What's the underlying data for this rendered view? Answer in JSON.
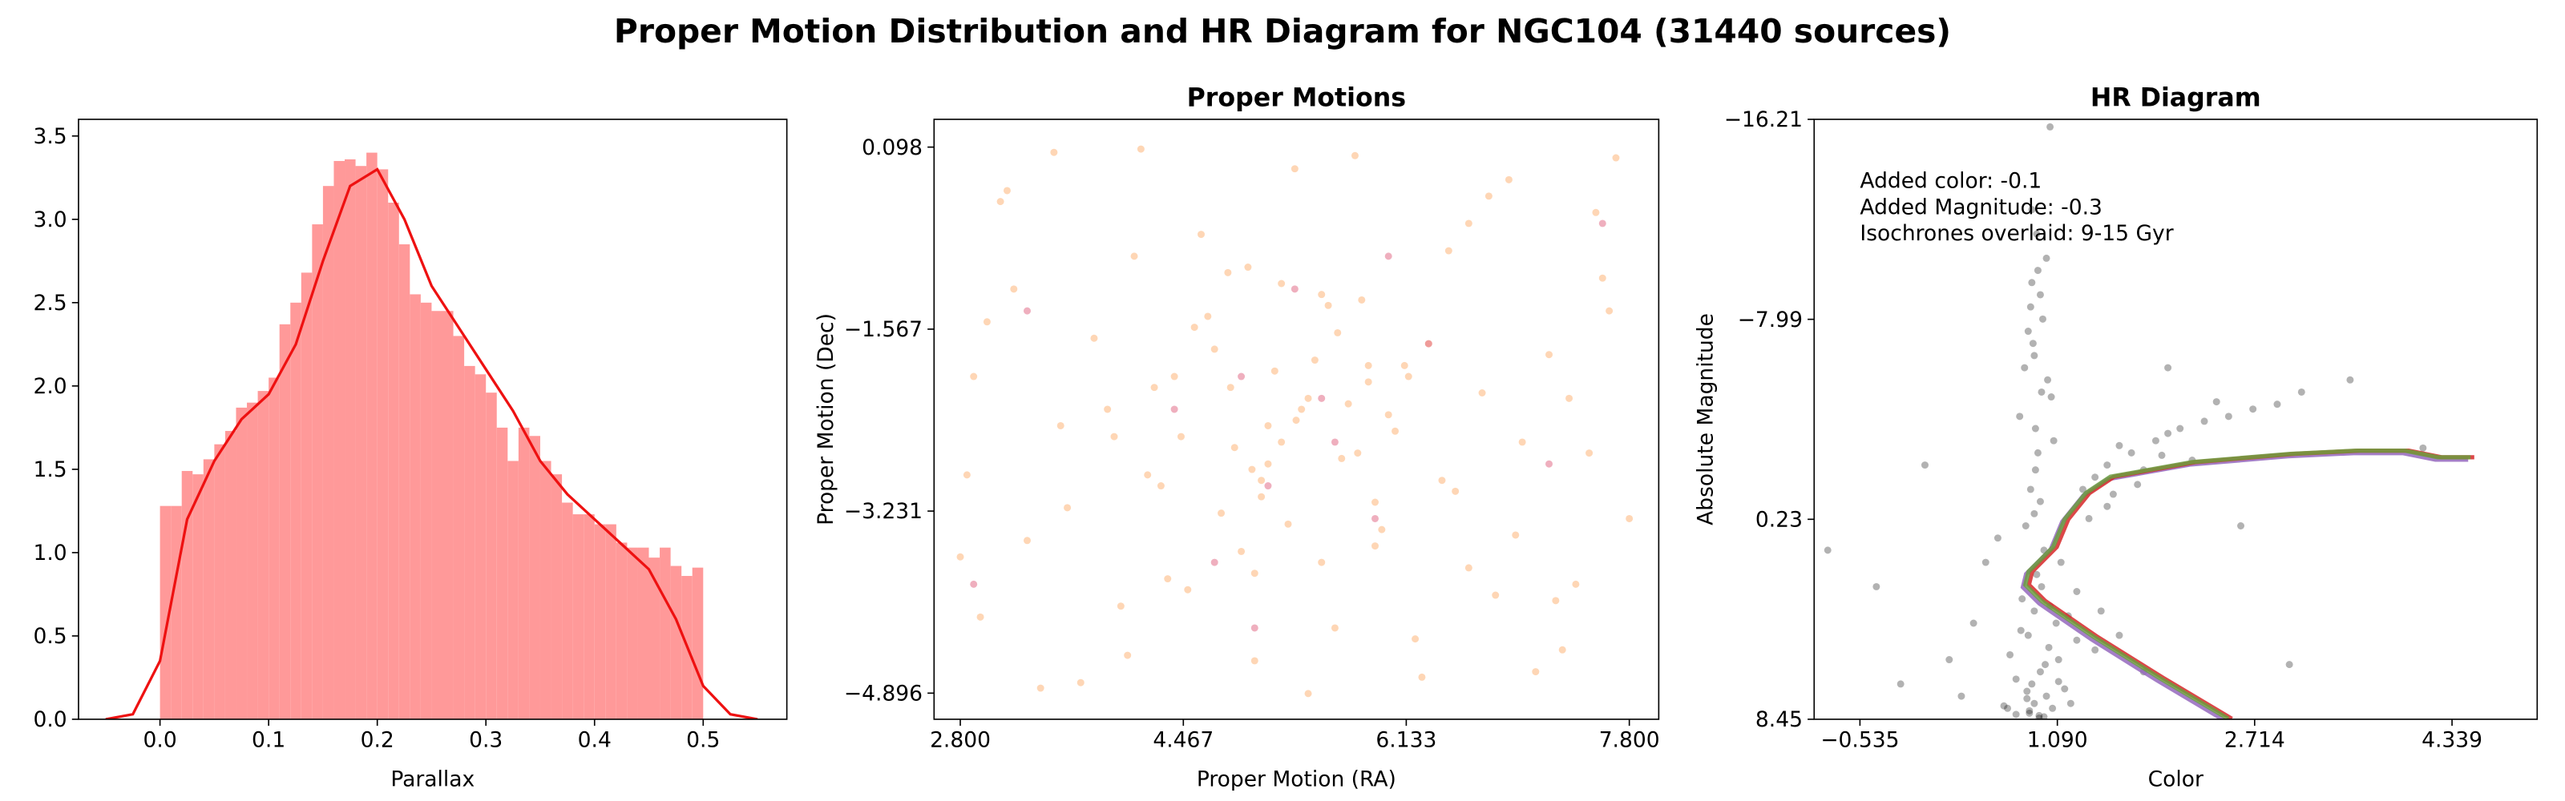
{
  "title": "Proper Motion Distribution and HR Diagram for NGC104 (31440 sources)",
  "chart_data": [
    {
      "type": "histogram",
      "xlabel": "Parallax",
      "color": "#ff9999",
      "bins": [
        0,
        0.01,
        0.02,
        0.03,
        0.04,
        0.05,
        0.06,
        0.07,
        0.08,
        0.09,
        0.1,
        0.11,
        0.12,
        0.13,
        0.14,
        0.15,
        0.16,
        0.17,
        0.18,
        0.19,
        0.2,
        0.21,
        0.22,
        0.23,
        0.24,
        0.25,
        0.26,
        0.27,
        0.28,
        0.29,
        0.3,
        0.31,
        0.32,
        0.33,
        0.34,
        0.35,
        0.36,
        0.37,
        0.38,
        0.39,
        0.4,
        0.41,
        0.42,
        0.43,
        0.44,
        0.45,
        0.46,
        0.47,
        0.48,
        0.49,
        0.5
      ],
      "counts": [
        1.28,
        1.28,
        1.49,
        1.47,
        1.56,
        1.65,
        1.73,
        1.87,
        1.9,
        1.97,
        2.05,
        2.37,
        2.5,
        2.68,
        2.97,
        3.2,
        3.35,
        3.36,
        3.32,
        3.4,
        3.3,
        3.1,
        2.85,
        2.55,
        2.5,
        2.45,
        2.45,
        2.3,
        2.12,
        2.07,
        1.96,
        1.75,
        1.55,
        1.75,
        1.7,
        1.55,
        1.47,
        1.3,
        1.23,
        1.23,
        1.17,
        1.17,
        1.06,
        1.03,
        1.03,
        0.97,
        1.03,
        0.92,
        0.86,
        0.91
      ],
      "kde": {
        "color": "#ee1111",
        "x": [
          -0.05,
          -0.025,
          0,
          0.025,
          0.05,
          0.075,
          0.1,
          0.125,
          0.15,
          0.175,
          0.2,
          0.225,
          0.25,
          0.275,
          0.3,
          0.325,
          0.35,
          0.375,
          0.4,
          0.425,
          0.45,
          0.475,
          0.5,
          0.525,
          0.55
        ],
        "values": [
          0,
          0.03,
          0.35,
          1.2,
          1.55,
          1.8,
          1.95,
          2.25,
          2.75,
          3.2,
          3.3,
          3.0,
          2.6,
          2.35,
          2.1,
          1.85,
          1.55,
          1.35,
          1.2,
          1.05,
          0.9,
          0.6,
          0.2,
          0.03,
          0
        ]
      },
      "xlim": [
        -0.075,
        0.577
      ],
      "ylim": [
        0,
        3.6
      ],
      "xticks": [
        {
          "value": 0,
          "label": "0.0"
        },
        0.1,
        0.2,
        0.3,
        0.4,
        0.5
      ],
      "yticks": [
        {
          "value": 0,
          "label": "0.0"
        },
        0.5,
        {
          "value": 1,
          "label": "1.0"
        },
        1.5,
        {
          "value": 2,
          "label": "2.0"
        },
        2.5,
        {
          "value": 3,
          "label": "3.0"
        },
        3.5
      ]
    },
    {
      "type": "scatter",
      "title": "Proper Motions",
      "xlabel": "Proper Motion (RA)",
      "ylabel": "Proper Motion (Dec)",
      "alpha": 0.5,
      "series": [
        {
          "color": "#fdae6b",
          "x": [
            5.31,
            4.82,
            5.77,
            6.12,
            4.45,
            5.05,
            5.62,
            4.98,
            5.4,
            6.4,
            3.9,
            4.7,
            5.95,
            5.2,
            4.3,
            6.7,
            5.55,
            4.9,
            5.1,
            5.85,
            3.1,
            7.6,
            2.95,
            7.4,
            3.5,
            7.1,
            4.1,
            6.9,
            3.3,
            7.7,
            2.9,
            7.3,
            3.7,
            6.6,
            4.0,
            7.5,
            3.2,
            6.2,
            4.6,
            5.0,
            5.35,
            5.45,
            4.75,
            5.65,
            6.05,
            4.55,
            5.25,
            5.15,
            4.85,
            5.9,
            6.3,
            4.2,
            5.7,
            5.5,
            4.65,
            6.5,
            4.4,
            5.8,
            5.0,
            6.0,
            3.0,
            7.8,
            3.6,
            7.2,
            2.85,
            6.8,
            4.15,
            7.0,
            3.4,
            7.55,
            5.3,
            5.6,
            4.95,
            6.25,
            4.35,
            5.75,
            6.45,
            4.05,
            5.2,
            5.4,
            3.8,
            7.35,
            3.15,
            6.95,
            2.8,
            7.65,
            4.5,
            6.75,
            3.55,
            7.25,
            5.1,
            4.8,
            5.9,
            6.15,
            4.25,
            5.5,
            6.6,
            3.95,
            5.05,
            5.85
          ],
          "values": [
            -2.4,
            -2.1,
            -2.7,
            -1.9,
            -2.55,
            -3.1,
            -1.6,
            -2.85,
            -2.2,
            -2.95,
            -2.3,
            -1.75,
            -3.4,
            -2.6,
            -3.0,
            -2.15,
            -1.35,
            -3.6,
            -2.45,
            -2.05,
            -0.4,
            -1.1,
            -4.2,
            -3.9,
            0.05,
            -4.7,
            -0.9,
            -0.2,
            -3.5,
            0.0,
            -2.0,
            -4.5,
            -4.8,
            -0.6,
            -4.1,
            -2.7,
            -1.2,
            -4.4,
            -0.7,
            -4.6,
            -2.3,
            -1.85,
            -3.25,
            -2.75,
            -2.5,
            -1.55,
            -3.35,
            -1.95,
            -2.65,
            -3.15,
            -1.7,
            -2.9,
            -2.25,
            -3.7,
            -1.45,
            -3.05,
            -2.0,
            -1.3,
            -3.8,
            -2.35,
            -1.5,
            -3.3,
            -3.2,
            -1.8,
            -2.9,
            -4.0,
            0.08,
            -2.6,
            -4.85,
            -0.5,
            -0.1,
            -4.3,
            -1.0,
            -4.75,
            -3.85,
            0.02,
            -0.85,
            -4.55,
            -1.15,
            -4.9,
            -1.65,
            -2.2,
            -0.3,
            -3.45,
            -3.65,
            -1.4,
            -3.95,
            -0.35,
            -2.45,
            -4.05,
            -2.8,
            -1.05,
            -3.55,
            -2.0,
            -2.1,
            -1.25,
            -3.75,
            -2.55,
            -2.95,
            -1.9
          ]
        },
        {
          "color": "#e0607e",
          "x": [
            4.9,
            5.6,
            5.1,
            6.3,
            4.4,
            5.9,
            3.3,
            7.2,
            5.3,
            4.7,
            6.0,
            5.5,
            2.9,
            7.6,
            5.0
          ],
          "values": [
            -2.0,
            -2.6,
            -3.0,
            -1.7,
            -2.3,
            -3.3,
            -1.4,
            -2.8,
            -1.2,
            -3.7,
            -0.9,
            -2.2,
            -3.9,
            -0.6,
            -4.3
          ]
        }
      ],
      "xlim": [
        2.604,
        8.02
      ],
      "ylim": [
        -5.135,
        0.352
      ],
      "xticks": [
        {
          "value": 2.8,
          "label": "2.800"
        },
        4.467,
        6.133,
        {
          "value": 7.8,
          "label": "7.800"
        }
      ],
      "yticks": [
        0.098,
        {
          "value": -1.567,
          "label": "−1.567"
        },
        {
          "value": -3.231,
          "label": "−3.231"
        },
        {
          "value": -4.896,
          "label": "−4.896"
        }
      ]
    },
    {
      "type": "scatter",
      "title": "HR Diagram",
      "xlabel": "Color",
      "ylabel": "Absolute Magnitude",
      "alpha": 0.3,
      "annotation": [
        "Added color: -0.1",
        "Added Magnitude: -0.3",
        "Isochrones overlaid: 9-15 Gyr"
      ],
      "series": [
        {
          "color": "#000000",
          "x": [
            0.85,
            0.95,
            1.0,
            0.9,
            1.05,
            0.8,
            1.1,
            0.88,
            0.92,
            1.02,
            0.75,
            0.98,
            1.15,
            0.7,
            1.08,
            0.83,
            0.96,
            1.2,
            0.65,
            1.12,
            0.87,
            0.93,
            0.78,
            1.01,
            0.89,
            1.06,
            0.82,
            0.97,
            0.91,
            1.04,
            0.86,
            0.94,
            0.99,
            0.84,
            1.03,
            0.79,
            0.9,
            0.95,
            0.88,
            1.0,
            1.3,
            1.5,
            1.7,
            1.9,
            2.1,
            2.3,
            2.5,
            2.7,
            2.9,
            3.1,
            1.4,
            1.6,
            1.8,
            2.0,
            2.2,
            2.4,
            1.35,
            1.55,
            1.75,
            1.95,
            0.4,
            0.2,
            1.6,
            1.8,
            0.5,
            1.45,
            0.3,
            1.25,
            0.6,
            1.4,
            0.92,
            0.88,
            0.95,
            0.85,
            0.9,
            0.93,
            0.87,
            0.96,
            0.91,
            1.03,
            -0.4,
            -0.8,
            3.5,
            4.1,
            2.6,
            0.0,
            -0.2,
            2.0,
            3.0,
            1.5,
            0.94,
            0.86,
            0.9,
            0.98,
            0.84,
            1.1,
            0.75,
            1.25,
            0.68,
            1.18
          ],
          "values": [
            5.0,
            6.5,
            7.5,
            4.0,
            8.0,
            3.5,
            6.0,
            7.0,
            2.5,
            5.5,
            6.8,
            1.5,
            7.2,
            5.8,
            4.5,
            0.5,
            3.0,
            7.8,
            7.9,
            2.0,
            -1.0,
            -2.5,
            -4.0,
            -5.5,
            -7.0,
            -3.0,
            -6.0,
            -8.0,
            -1.8,
            -4.8,
            8.2,
            8.3,
            6.2,
            7.6,
            3.8,
            4.8,
            0.0,
            -0.5,
            -9.5,
            -10.5,
            -1.0,
            -2.0,
            -2.5,
            -3.0,
            -3.5,
            -3.8,
            -4.0,
            -4.3,
            -4.5,
            -5.0,
            -1.5,
            -2.8,
            -1.8,
            -3.3,
            -2.2,
            -4.6,
            0.2,
            -0.8,
            -1.2,
            -2.4,
            4.5,
            6.0,
            5.0,
            6.5,
            2.0,
            4.0,
            7.5,
            3.2,
            1.0,
            5.6,
            -11.5,
            -12.5,
            -9.0,
            -7.5,
            -6.5,
            -10.0,
            -8.5,
            -5.0,
            -3.5,
            -15.9,
            3.0,
            1.5,
            -5.5,
            -2.7,
            0.5,
            -2.0,
            7.0,
            -6.0,
            6.2,
            -0.3,
            8.4,
            8.1,
            7.8,
            8.35,
            7.3,
            6.9,
            8.25,
            5.2,
            8.0,
            4.2
          ]
        }
      ],
      "lines": [
        {
          "color": "#9467bd",
          "x": [
            2.477,
            1.911,
            1.372,
            0.941,
            0.806,
            0.833,
            1.035,
            1.13,
            1.305,
            1.507,
            2.181,
            2.989,
            3.529,
            3.933,
            4.202,
            4.472
          ],
          "values": [
            8.53,
            6.85,
            5.17,
            3.69,
            3.02,
            2.48,
            1.47,
            0.33,
            -0.75,
            -1.42,
            -2.02,
            -2.36,
            -2.49,
            -2.49,
            -2.22,
            -2.22
          ]
        },
        {
          "color": "#d62728",
          "x": [
            2.527,
            1.961,
            1.422,
            0.991,
            0.856,
            0.883,
            1.085,
            1.18,
            1.355,
            1.557,
            2.231,
            3.039,
            3.579,
            3.983,
            4.252,
            4.522
          ],
          "values": [
            8.43,
            6.75,
            5.07,
            3.59,
            2.92,
            2.38,
            1.37,
            0.23,
            -0.85,
            -1.52,
            -2.12,
            -2.46,
            -2.59,
            -2.59,
            -2.32,
            -2.32
          ]
        },
        {
          "color": "#6b9e3f",
          "x": [
            2.497,
            1.931,
            1.392,
            0.961,
            0.826,
            0.853,
            1.055,
            1.15,
            1.325,
            1.527,
            2.201,
            3.009,
            3.549,
            3.953,
            4.222,
            4.492
          ],
          "values": [
            8.43,
            6.75,
            5.07,
            3.59,
            2.92,
            2.38,
            1.37,
            0.23,
            -0.85,
            -1.52,
            -2.12,
            -2.46,
            -2.59,
            -2.59,
            -2.32,
            -2.32
          ]
        }
      ],
      "xlim": [
        -0.912,
        5.04
      ],
      "ylim": [
        8.45,
        -16.21
      ],
      "xticks": [
        {
          "value": -0.535,
          "label": "−0.535"
        },
        {
          "value": 1.09,
          "label": "1.090"
        },
        2.714,
        4.339
      ],
      "yticks": [
        {
          "value": -16.21,
          "label": "−16.21"
        },
        {
          "value": -7.99,
          "label": "−7.99"
        },
        0.23,
        8.45
      ]
    }
  ]
}
